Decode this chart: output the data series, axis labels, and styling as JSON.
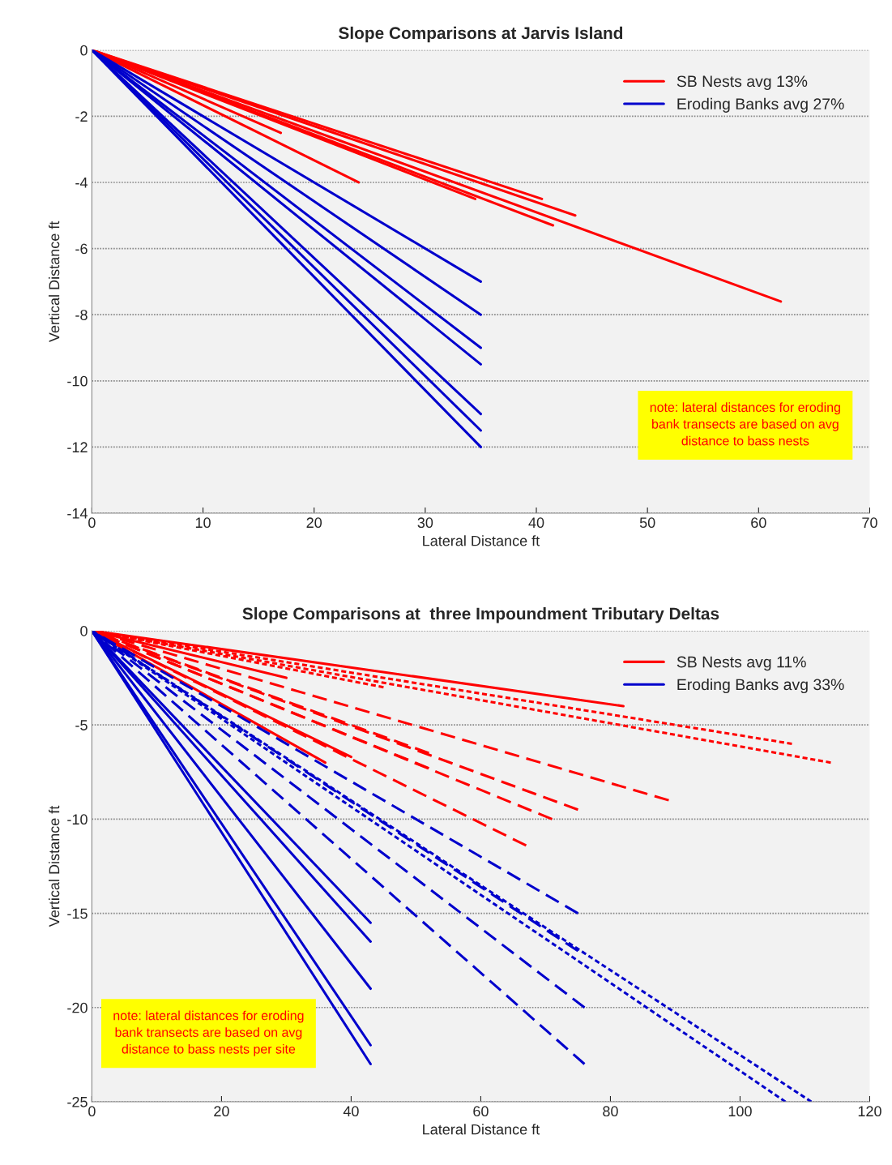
{
  "chart_data": [
    {
      "type": "line",
      "title": "Slope Comparisons at Jarvis Island",
      "xlabel": "Lateral Distance ft",
      "ylabel": "Vertical Distance ft",
      "xlim": [
        0,
        70
      ],
      "xticks": [
        0,
        10,
        20,
        30,
        40,
        50,
        60,
        70
      ],
      "ylim": [
        -14,
        0
      ],
      "yticks": [
        -14,
        -12,
        -10,
        -8,
        -6,
        -4,
        -2,
        0
      ],
      "grid": "y",
      "legend": "top right",
      "marker": "none",
      "annotations": [
        "note: lateral distances for eroding bank transects are based on avg distance to bass nests"
      ],
      "series": [
        {
          "name": "SB Nests avg 13%",
          "color": "#ff0000",
          "line_style": "solid",
          "x": [
            0,
            17
          ],
          "values": [
            0,
            -2.5
          ]
        },
        {
          "color": "#ff0000",
          "line_style": "solid",
          "x": [
            0,
            24
          ],
          "values": [
            0,
            -4
          ]
        },
        {
          "color": "#ff0000",
          "line_style": "solid",
          "x": [
            0,
            34.5
          ],
          "values": [
            0,
            -4.5
          ]
        },
        {
          "color": "#ff0000",
          "line_style": "solid",
          "x": [
            0,
            40.5
          ],
          "values": [
            0,
            -4.5
          ]
        },
        {
          "color": "#ff0000",
          "line_style": "solid",
          "x": [
            0,
            43.5
          ],
          "values": [
            0,
            -5
          ]
        },
        {
          "color": "#ff0000",
          "line_style": "solid",
          "x": [
            0,
            41.5
          ],
          "values": [
            0,
            -5.3
          ]
        },
        {
          "color": "#ff0000",
          "line_style": "solid",
          "x": [
            0,
            62
          ],
          "values": [
            0,
            -7.6
          ]
        },
        {
          "name": "Eroding Banks avg 27%",
          "color": "#0000cc",
          "line_style": "solid",
          "x": [
            0,
            35
          ],
          "values": [
            0,
            -7
          ]
        },
        {
          "color": "#0000cc",
          "line_style": "solid",
          "x": [
            0,
            35
          ],
          "values": [
            0,
            -8
          ]
        },
        {
          "color": "#0000cc",
          "line_style": "solid",
          "x": [
            0,
            35
          ],
          "values": [
            0,
            -9
          ]
        },
        {
          "color": "#0000cc",
          "line_style": "solid",
          "x": [
            0,
            35
          ],
          "values": [
            0,
            -9.5
          ]
        },
        {
          "color": "#0000cc",
          "line_style": "solid",
          "x": [
            0,
            35
          ],
          "values": [
            0,
            -11
          ]
        },
        {
          "color": "#0000cc",
          "line_style": "solid",
          "x": [
            0,
            35
          ],
          "values": [
            0,
            -11.5
          ]
        },
        {
          "color": "#0000cc",
          "line_style": "solid",
          "x": [
            0,
            35
          ],
          "values": [
            0,
            -12
          ]
        }
      ]
    },
    {
      "type": "line",
      "title": "Slope Comparisons at  three Impoundment Tributary Deltas",
      "xlabel": "Lateral Distance ft",
      "ylabel": "Vertical Distance ft",
      "xlim": [
        0,
        120
      ],
      "xticks": [
        0,
        20,
        40,
        60,
        80,
        100,
        120
      ],
      "ylim": [
        -25,
        0
      ],
      "yticks": [
        -25,
        -20,
        -15,
        -10,
        -5,
        0
      ],
      "grid": "y",
      "legend": "top right",
      "marker": "none",
      "annotations": [
        "note: lateral distances for eroding bank transects are based on avg distance to bass nests per site"
      ],
      "series": [
        {
          "name": "SB Nests avg 11%",
          "color": "#ff0000",
          "line_style": "solid",
          "x": [
            0,
            30
          ],
          "values": [
            0,
            -2.5
          ]
        },
        {
          "color": "#ff0000",
          "line_style": "solid",
          "x": [
            0,
            82
          ],
          "values": [
            0,
            -4
          ]
        },
        {
          "color": "#ff0000",
          "line_style": "solid",
          "x": [
            0,
            36
          ],
          "values": [
            0,
            -7
          ]
        },
        {
          "color": "#ff0000",
          "line_style": "solid",
          "x": [
            0,
            40
          ],
          "values": [
            0,
            -6.7
          ]
        },
        {
          "color": "#ff0000",
          "line_style": "dotted",
          "x": [
            0,
            45
          ],
          "values": [
            0,
            -3
          ]
        },
        {
          "color": "#ff0000",
          "line_style": "dotted",
          "x": [
            0,
            108
          ],
          "values": [
            0,
            -6
          ]
        },
        {
          "color": "#ff0000",
          "line_style": "dotted",
          "x": [
            0,
            114
          ],
          "values": [
            0,
            -7
          ]
        },
        {
          "color": "#ff0000",
          "line_style": "dashed",
          "x": [
            0,
            52
          ],
          "values": [
            0,
            -6.5
          ]
        },
        {
          "color": "#ff0000",
          "line_style": "dashed",
          "x": [
            0,
            52
          ],
          "values": [
            0,
            -7.3
          ]
        },
        {
          "color": "#ff0000",
          "line_style": "dashed",
          "x": [
            0,
            75
          ],
          "values": [
            0,
            -9.5
          ]
        },
        {
          "color": "#ff0000",
          "line_style": "dashed",
          "x": [
            0,
            71
          ],
          "values": [
            0,
            -10
          ]
        },
        {
          "color": "#ff0000",
          "line_style": "dashed",
          "x": [
            0,
            89
          ],
          "values": [
            0,
            -9
          ]
        },
        {
          "color": "#ff0000",
          "line_style": "dashed",
          "x": [
            0,
            67
          ],
          "values": [
            0,
            -11.4
          ]
        },
        {
          "name": "Eroding Banks avg 33%",
          "color": "#0000cc",
          "line_style": "solid",
          "x": [
            0,
            43
          ],
          "values": [
            0,
            -15.5
          ]
        },
        {
          "color": "#0000cc",
          "line_style": "solid",
          "x": [
            0,
            43
          ],
          "values": [
            0,
            -16.5
          ]
        },
        {
          "color": "#0000cc",
          "line_style": "solid",
          "x": [
            0,
            43
          ],
          "values": [
            0,
            -19
          ]
        },
        {
          "color": "#0000cc",
          "line_style": "solid",
          "x": [
            0,
            43
          ],
          "values": [
            0,
            -22
          ]
        },
        {
          "color": "#0000cc",
          "line_style": "solid",
          "x": [
            0,
            43
          ],
          "values": [
            0,
            -23
          ]
        },
        {
          "color": "#0000cc",
          "line_style": "dashed",
          "x": [
            0,
            75
          ],
          "values": [
            0,
            -15
          ]
        },
        {
          "color": "#0000cc",
          "line_style": "dashed",
          "x": [
            0,
            75
          ],
          "values": [
            0,
            -17
          ]
        },
        {
          "color": "#0000cc",
          "line_style": "dashed",
          "x": [
            0,
            76
          ],
          "values": [
            0,
            -20
          ]
        },
        {
          "color": "#0000cc",
          "line_style": "dashed",
          "x": [
            0,
            76
          ],
          "values": [
            0,
            -23
          ]
        },
        {
          "color": "#0000cc",
          "line_style": "dotted",
          "x": [
            0,
            107
          ],
          "values": [
            0,
            -25
          ]
        },
        {
          "color": "#0000cc",
          "line_style": "dotted",
          "x": [
            0,
            111
          ],
          "values": [
            0,
            -25
          ]
        }
      ]
    }
  ]
}
